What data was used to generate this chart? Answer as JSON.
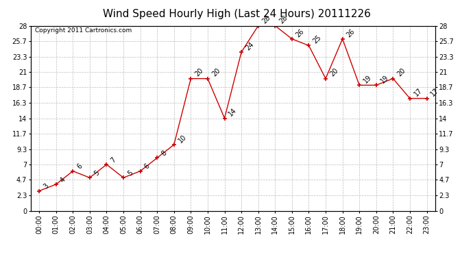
{
  "title": "Wind Speed Hourly High (Last 24 Hours) 20111226",
  "copyright": "Copyright 2011 Cartronics.com",
  "hours": [
    "00:00",
    "01:00",
    "02:00",
    "03:00",
    "04:00",
    "05:00",
    "06:00",
    "07:00",
    "08:00",
    "09:00",
    "10:00",
    "11:00",
    "12:00",
    "13:00",
    "14:00",
    "15:00",
    "16:00",
    "17:00",
    "18:00",
    "19:00",
    "20:00",
    "21:00",
    "22:00",
    "23:00"
  ],
  "values": [
    3,
    4,
    6,
    5,
    7,
    5,
    6,
    8,
    10,
    20,
    20,
    14,
    24,
    28,
    28,
    26,
    25,
    20,
    26,
    19,
    19,
    20,
    17,
    17
  ],
  "line_color": "#cc0000",
  "marker_color": "#cc0000",
  "bg_color": "#ffffff",
  "plot_bg_color": "#ffffff",
  "grid_color": "#bbbbbb",
  "yticks": [
    0.0,
    2.3,
    4.7,
    7.0,
    9.3,
    11.7,
    14.0,
    16.3,
    18.7,
    21.0,
    23.3,
    25.7,
    28.0
  ],
  "ymin": 0.0,
  "ymax": 28.0,
  "title_fontsize": 11,
  "label_fontsize": 7,
  "annotation_fontsize": 7,
  "copyright_fontsize": 6.5
}
